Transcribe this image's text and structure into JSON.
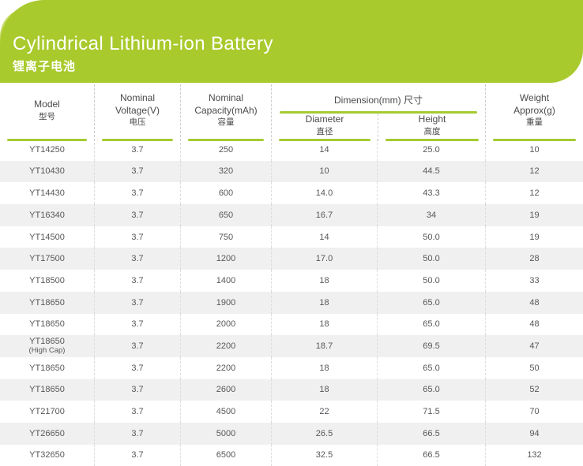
{
  "banner": {
    "title": "Cylindrical Lithium-ion Battery",
    "subtitle": "锂离子电池",
    "bg_color": "#a9ca2d",
    "accent_color": "#c6db66",
    "text_color": "#ffffff"
  },
  "table": {
    "headers": {
      "model": {
        "line1": "Model",
        "zh": "型号"
      },
      "voltage": {
        "line1": "Nominal",
        "line2": "Voltage(V)",
        "zh": "电压"
      },
      "capacity": {
        "line1": "Nominal",
        "line2": "Capacity(mAh)",
        "zh": "容量"
      },
      "dimension": {
        "title": "Dimension(mm) 尺寸"
      },
      "diameter": {
        "line1": "Diameter",
        "zh": "直径"
      },
      "height": {
        "line1": "Height",
        "zh": "高度"
      },
      "weight": {
        "line1": "Weight",
        "line2": "Approx(g)",
        "zh": "重量"
      }
    },
    "rows": [
      {
        "model": "YT14250",
        "note": "",
        "voltage": "3.7",
        "capacity": "250",
        "diameter": "14",
        "height": "25.0",
        "weight": "10"
      },
      {
        "model": "YT10430",
        "note": "",
        "voltage": "3.7",
        "capacity": "320",
        "diameter": "10",
        "height": "44.5",
        "weight": "12"
      },
      {
        "model": "YT14430",
        "note": "",
        "voltage": "3.7",
        "capacity": "600",
        "diameter": "14.0",
        "height": "43.3",
        "weight": "12"
      },
      {
        "model": "YT16340",
        "note": "",
        "voltage": "3.7",
        "capacity": "650",
        "diameter": "16.7",
        "height": "34",
        "weight": "19"
      },
      {
        "model": "YT14500",
        "note": "",
        "voltage": "3.7",
        "capacity": "750",
        "diameter": "14",
        "height": "50.0",
        "weight": "19"
      },
      {
        "model": "YT17500",
        "note": "",
        "voltage": "3.7",
        "capacity": "1200",
        "diameter": "17.0",
        "height": "50.0",
        "weight": "28"
      },
      {
        "model": "YT18500",
        "note": "",
        "voltage": "3.7",
        "capacity": "1400",
        "diameter": "18",
        "height": "50.0",
        "weight": "33"
      },
      {
        "model": "YT18650",
        "note": "",
        "voltage": "3.7",
        "capacity": "1900",
        "diameter": "18",
        "height": "65.0",
        "weight": "48"
      },
      {
        "model": "YT18650",
        "note": "",
        "voltage": "3.7",
        "capacity": "2000",
        "diameter": "18",
        "height": "65.0",
        "weight": "48"
      },
      {
        "model": "YT18650",
        "note": "(High Cap)",
        "voltage": "3.7",
        "capacity": "2200",
        "diameter": "18.7",
        "height": "69.5",
        "weight": "47"
      },
      {
        "model": "YT18650",
        "note": "",
        "voltage": "3.7",
        "capacity": "2200",
        "diameter": "18",
        "height": "65.0",
        "weight": "50"
      },
      {
        "model": "YT18650",
        "note": "",
        "voltage": "3.7",
        "capacity": "2600",
        "diameter": "18",
        "height": "65.0",
        "weight": "52"
      },
      {
        "model": "YT21700",
        "note": "",
        "voltage": "3.7",
        "capacity": "4500",
        "diameter": "22",
        "height": "71.5",
        "weight": "70"
      },
      {
        "model": "YT26650",
        "note": "",
        "voltage": "3.7",
        "capacity": "5000",
        "diameter": "26.5",
        "height": "66.5",
        "weight": "94"
      },
      {
        "model": "YT32650",
        "note": "",
        "voltage": "3.7",
        "capacity": "6500",
        "diameter": "32.5",
        "height": "66.5",
        "weight": "132"
      }
    ]
  },
  "colors": {
    "line_green": "#a5cb31",
    "alt_row_bg": "#f0f0f0",
    "header_text": "#4a4a4a",
    "data_text": "#56575a",
    "dashed_separator": "#cccccc",
    "bottom_border": "#d4d4d4"
  }
}
